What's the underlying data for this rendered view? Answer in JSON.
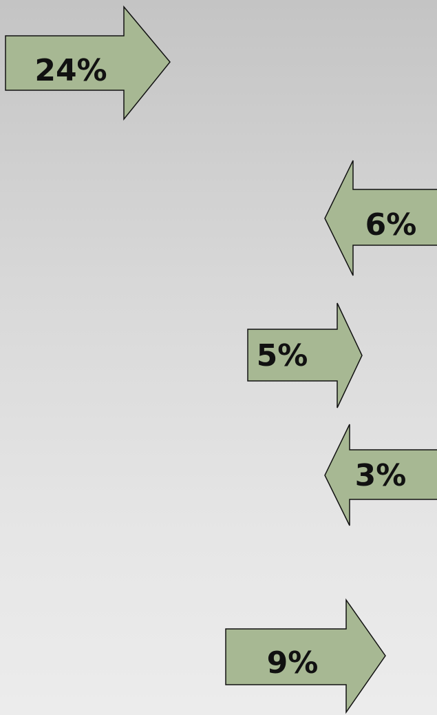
{
  "arrows": [
    {
      "label": "24%",
      "direction": "right"
    },
    {
      "label": "6%",
      "direction": "left"
    },
    {
      "label": "5%",
      "direction": "right"
    },
    {
      "label": "3%",
      "direction": "left"
    },
    {
      "label": "9%",
      "direction": "right"
    }
  ],
  "colors": {
    "arrow_fill": "#a7b893",
    "arrow_stroke": "#111111",
    "text": "#111111"
  }
}
